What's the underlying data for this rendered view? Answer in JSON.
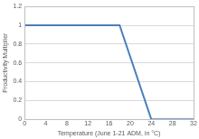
{
  "chart_data": {
    "type": "line",
    "x_label": "Temperature (June 1-21 ADM, in °C)",
    "y_label": "Productivity Multiplier",
    "x": [
      0,
      18,
      24,
      32
    ],
    "values": [
      1,
      1,
      0,
      0
    ],
    "color": "#4a7ebb",
    "xlim": [
      0,
      32
    ],
    "xticks": [
      0,
      4,
      8,
      12,
      16,
      20,
      24,
      28,
      32
    ],
    "ylim": [
      0,
      1.2
    ],
    "yticks": [
      0,
      0.2,
      0.4,
      0.6,
      0.8,
      1,
      1.2
    ],
    "grid": "y"
  }
}
